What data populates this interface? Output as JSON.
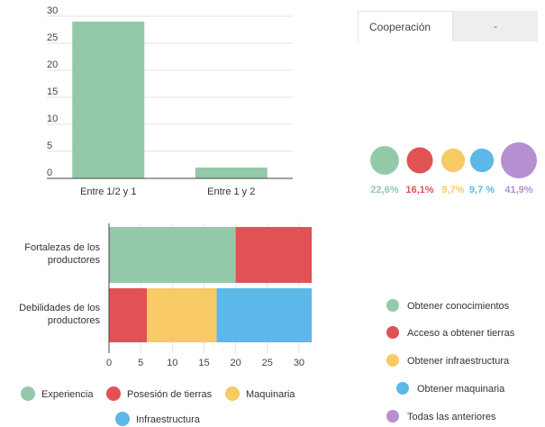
{
  "tabs": [
    {
      "label": "Cooperación"
    },
    {
      "label": "-"
    }
  ],
  "chart_data": [
    {
      "type": "bar",
      "categories": [
        "Entre 1/2 y 1",
        "Entre 1 y 2"
      ],
      "values": [
        29,
        2
      ],
      "ylim": [
        0,
        30
      ],
      "yticks": [
        0,
        5,
        10,
        15,
        20,
        25,
        30
      ],
      "grid": true,
      "bar_color": "#93c9a8"
    },
    {
      "type": "bar",
      "orientation": "horizontal",
      "stacked": true,
      "categories": [
        "Fortalezas de los productores",
        "Debilidades de los productores"
      ],
      "series": [
        {
          "name": "Experiencia",
          "values": [
            20,
            0
          ],
          "color": "#93c9a8"
        },
        {
          "name": "Posesión de tierras",
          "values": [
            12,
            6
          ],
          "color": "#e05254"
        },
        {
          "name": "Maquinaria",
          "values": [
            0,
            11
          ],
          "color": "#f7ca66"
        },
        {
          "name": "Infraestructura",
          "values": [
            0,
            15
          ],
          "color": "#5bb8e8"
        }
      ],
      "xlim": [
        0,
        32
      ],
      "xticks": [
        0,
        5,
        10,
        15,
        20,
        25,
        30
      ],
      "legend": "bottom"
    },
    {
      "type": "bubble",
      "series": [
        {
          "name": "Obtener conocimientos",
          "label": "22,6%",
          "value": 22.6,
          "color": "#93c9a8"
        },
        {
          "name": "Acceso a obtener tierras",
          "label": "16,1%",
          "value": 16.1,
          "color": "#e05254"
        },
        {
          "name": "Obtener infraestructura",
          "label": "9,7%",
          "value": 9.7,
          "color": "#f7ca66"
        },
        {
          "name": "Obtener maquinaria",
          "label": "9,7 %",
          "value": 9.7,
          "color": "#5bb8e8"
        },
        {
          "name": "Todas las anteriores",
          "label": "41,9%",
          "value": 41.9,
          "color": "#b68fd1"
        }
      ],
      "legend": "bottom-right"
    }
  ]
}
